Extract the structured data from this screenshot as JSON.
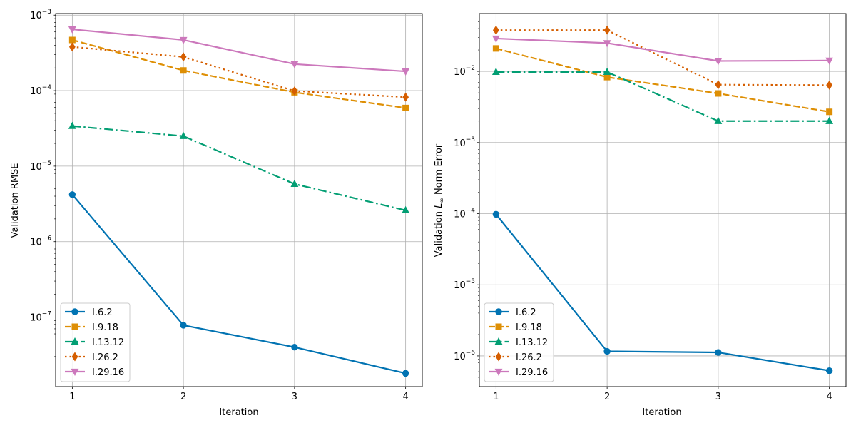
{
  "chart_data": [
    {
      "type": "line",
      "yscale": "log",
      "title": "",
      "xlabel": "Iteration",
      "ylabel": "Validation RMSE",
      "x": [
        1,
        2,
        3,
        4
      ],
      "xticks": [
        "1",
        "2",
        "3",
        "4"
      ],
      "xlim": [
        0.85,
        4.15
      ],
      "ylim": [
        1.2e-08,
        0.00105
      ],
      "yticks": [
        {
          "value": 1e-07,
          "base": "10",
          "exp": "−7"
        },
        {
          "value": 1e-06,
          "base": "10",
          "exp": "−6"
        },
        {
          "value": 1e-05,
          "base": "10",
          "exp": "−5"
        },
        {
          "value": 0.0001,
          "base": "10",
          "exp": "−4"
        },
        {
          "value": 0.001,
          "base": "10",
          "exp": "−3"
        }
      ],
      "grid": true,
      "legend_position": "lower-left",
      "series": [
        {
          "name": "I.6.2",
          "values": [
            4.2e-06,
            7.8e-08,
            4e-08,
            1.8e-08
          ]
        },
        {
          "name": "I.9.18",
          "values": [
            0.00047,
            0.000185,
            9.5e-05,
            5.9e-05
          ]
        },
        {
          "name": "I.13.12",
          "values": [
            3.4e-05,
            2.5e-05,
            5.8e-06,
            2.6e-06
          ]
        },
        {
          "name": "I.26.2",
          "values": [
            0.00038,
            0.00028,
            9.9e-05,
            8.2e-05
          ]
        },
        {
          "name": "I.29.16",
          "values": [
            0.00065,
            0.00047,
            0.000225,
            0.00018
          ]
        }
      ]
    },
    {
      "type": "line",
      "yscale": "log",
      "title": "",
      "xlabel": "Iteration",
      "ylabel_prefix": "Validation ",
      "ylabel_math": "L",
      "ylabel_sub": "∞",
      "ylabel_suffix": " Norm Error",
      "x": [
        1,
        2,
        3,
        4
      ],
      "xticks": [
        "1",
        "2",
        "3",
        "4"
      ],
      "xlim": [
        0.85,
        4.15
      ],
      "ylim": [
        3.7e-07,
        0.065
      ],
      "yticks": [
        {
          "value": 1e-06,
          "base": "10",
          "exp": "−6"
        },
        {
          "value": 1e-05,
          "base": "10",
          "exp": "−5"
        },
        {
          "value": 0.0001,
          "base": "10",
          "exp": "−4"
        },
        {
          "value": 0.001,
          "base": "10",
          "exp": "−3"
        },
        {
          "value": 0.01,
          "base": "10",
          "exp": "−2"
        }
      ],
      "grid": true,
      "legend_position": "lower-left",
      "series": [
        {
          "name": "I.6.2",
          "values": [
            9.8e-05,
            1.16e-06,
            1.12e-06,
            6.2e-07
          ]
        },
        {
          "name": "I.9.18",
          "values": [
            0.021,
            0.0083,
            0.0049,
            0.0027
          ]
        },
        {
          "name": "I.13.12",
          "values": [
            0.0098,
            0.0098,
            0.002,
            0.002
          ]
        },
        {
          "name": "I.26.2",
          "values": [
            0.038,
            0.038,
            0.0065,
            0.0064
          ]
        },
        {
          "name": "I.29.16",
          "values": [
            0.029,
            0.025,
            0.014,
            0.0142
          ]
        }
      ]
    }
  ],
  "series_styles": [
    {
      "color": "#0173b2",
      "marker": "circle",
      "dash": ""
    },
    {
      "color": "#de8f05",
      "marker": "square",
      "dash": "9 3.5"
    },
    {
      "color": "#029e73",
      "marker": "triangle-up",
      "dash": "12 4 2.5 4"
    },
    {
      "color": "#d55e00",
      "marker": "diamond",
      "dash": "2.5 4"
    },
    {
      "color": "#cc78bc",
      "marker": "triangle-down",
      "dash": ""
    }
  ]
}
